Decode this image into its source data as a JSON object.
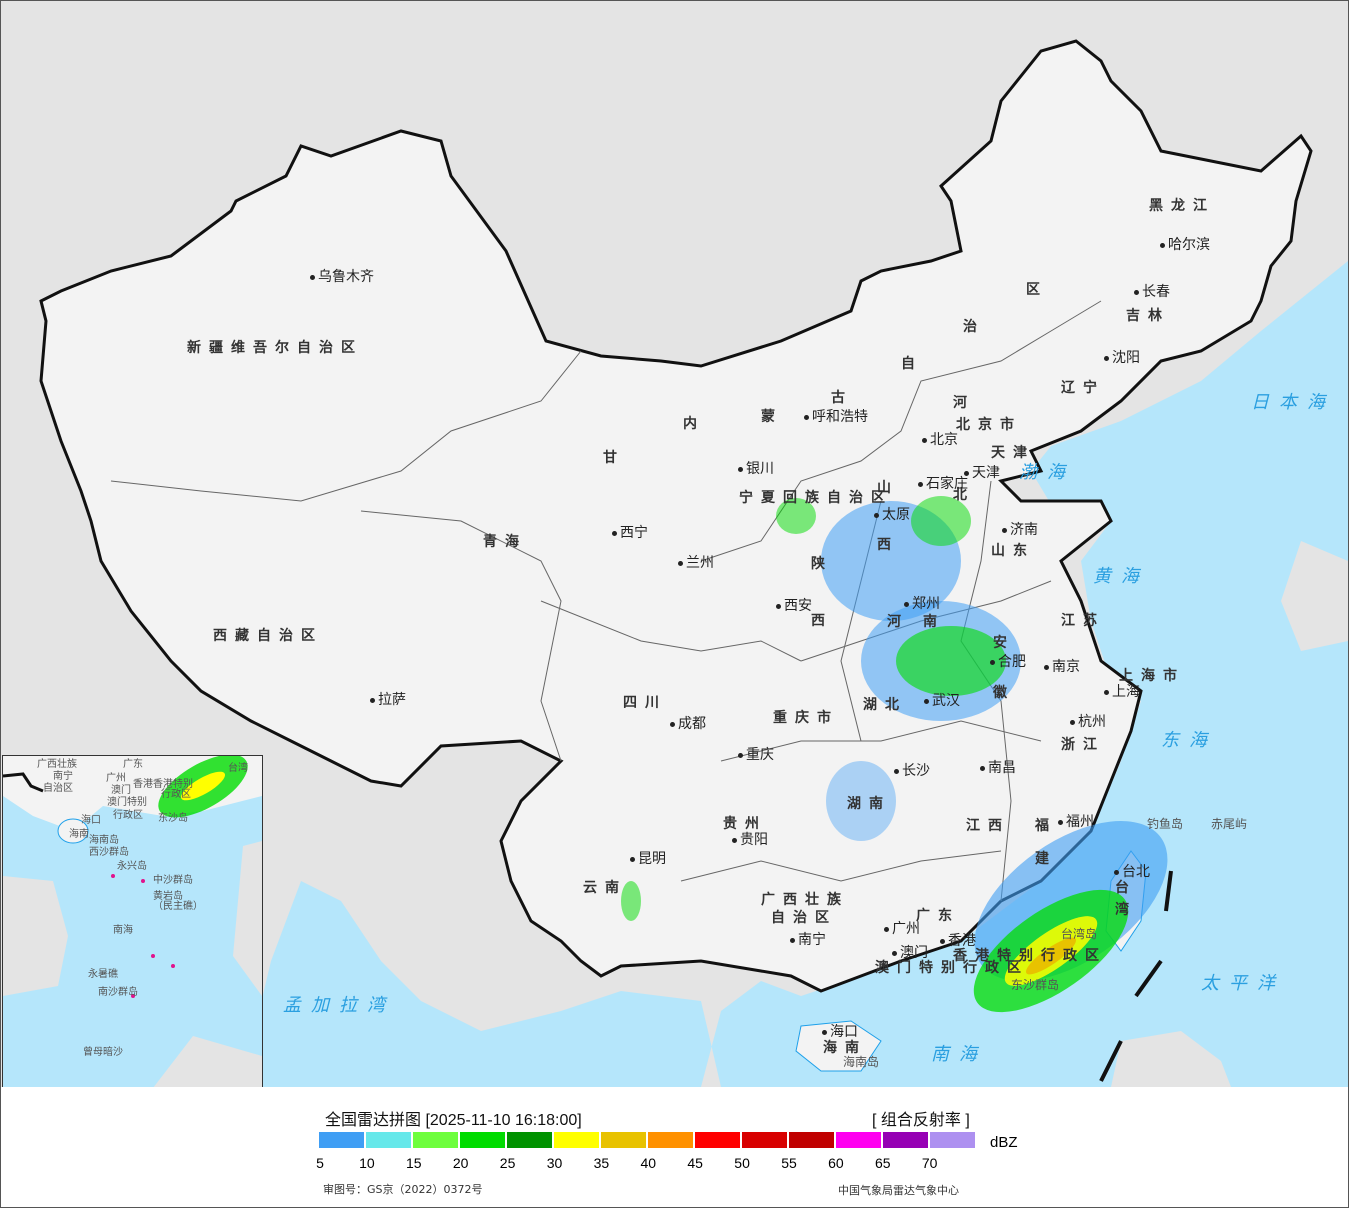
{
  "title": "全国雷达拼图 [2025-11-10 16:18:00]",
  "product": "[ 组合反射率 ]",
  "unit": "dBZ",
  "approval_number": "审图号：GS京（2022）0372号",
  "organization": "中国气象局雷达气象中心",
  "legend": {
    "colors": [
      "#3f9ef4",
      "#66e8ea",
      "#6efe3e",
      "#00dc00",
      "#009200",
      "#ffff00",
      "#e8c200",
      "#ff9100",
      "#ff0000",
      "#d80000",
      "#c00000",
      "#ff00f0",
      "#9600b4",
      "#ad90f0"
    ],
    "ticks": [
      "5",
      "10",
      "15",
      "20",
      "25",
      "30",
      "35",
      "40",
      "45",
      "50",
      "55",
      "60",
      "65",
      "70"
    ]
  },
  "colors": {
    "land": "#f3f3f3",
    "outside": "#e4e4e4",
    "sea": "#b5e6fb",
    "border": "#111111",
    "river": "#1ea0ea"
  },
  "map_labels": {
    "provinces": [
      "新疆维吾尔自治区",
      "西藏自治区",
      "青海",
      "甘",
      "内",
      "蒙",
      "古",
      "自",
      "治",
      "区",
      "黑龙江",
      "吉林",
      "辽宁",
      "河",
      "北",
      "山",
      "西",
      "山东",
      "河",
      "南",
      "陕",
      "西",
      "宁夏回族自治区",
      "四川",
      "重庆市",
      "贵州",
      "云南",
      "广西壮族",
      "自治区",
      "广东",
      "湖南",
      "湖北",
      "江西",
      "安",
      "徽",
      "江苏",
      "浙江",
      "福",
      "建",
      "台",
      "湾",
      "海南",
      "上海市",
      "香港特别行政区",
      "澳门特别行政区",
      "天津",
      "北京市"
    ],
    "cities": [
      "乌鲁木齐",
      "拉萨",
      "西宁",
      "兰州",
      "银川",
      "呼和浩特",
      "北京",
      "天津",
      "石家庄",
      "太原",
      "济南",
      "郑州",
      "西安",
      "成都",
      "重庆",
      "贵阳",
      "昆明",
      "南宁",
      "广州",
      "澳门",
      "香港",
      "长沙",
      "武汉",
      "南昌",
      "合肥",
      "南京",
      "上海",
      "杭州",
      "福州",
      "台北",
      "海口",
      "沈阳",
      "长春",
      "哈尔滨"
    ],
    "seas": [
      "日本海",
      "渤海",
      "黄海",
      "东海",
      "太平洋",
      "南海",
      "孟加拉湾"
    ],
    "islands": [
      "钓鱼岛",
      "赤尾屿",
      "海南岛",
      "东沙群岛",
      "台湾岛"
    ]
  },
  "inset_labels": [
    "广西壮族",
    "南宁",
    "自治区",
    "广东",
    "广州",
    "澳门",
    "香港",
    "香港特别",
    "行政区",
    "澳门特别",
    "行政区",
    "海口",
    "海南",
    "海南岛",
    "西沙群岛",
    "永兴岛",
    "中沙群岛",
    "黄岩岛",
    "（民主礁）",
    "南海",
    "永暑礁",
    "南沙群岛",
    "曾母暗沙",
    "东沙岛",
    "台湾"
  ]
}
